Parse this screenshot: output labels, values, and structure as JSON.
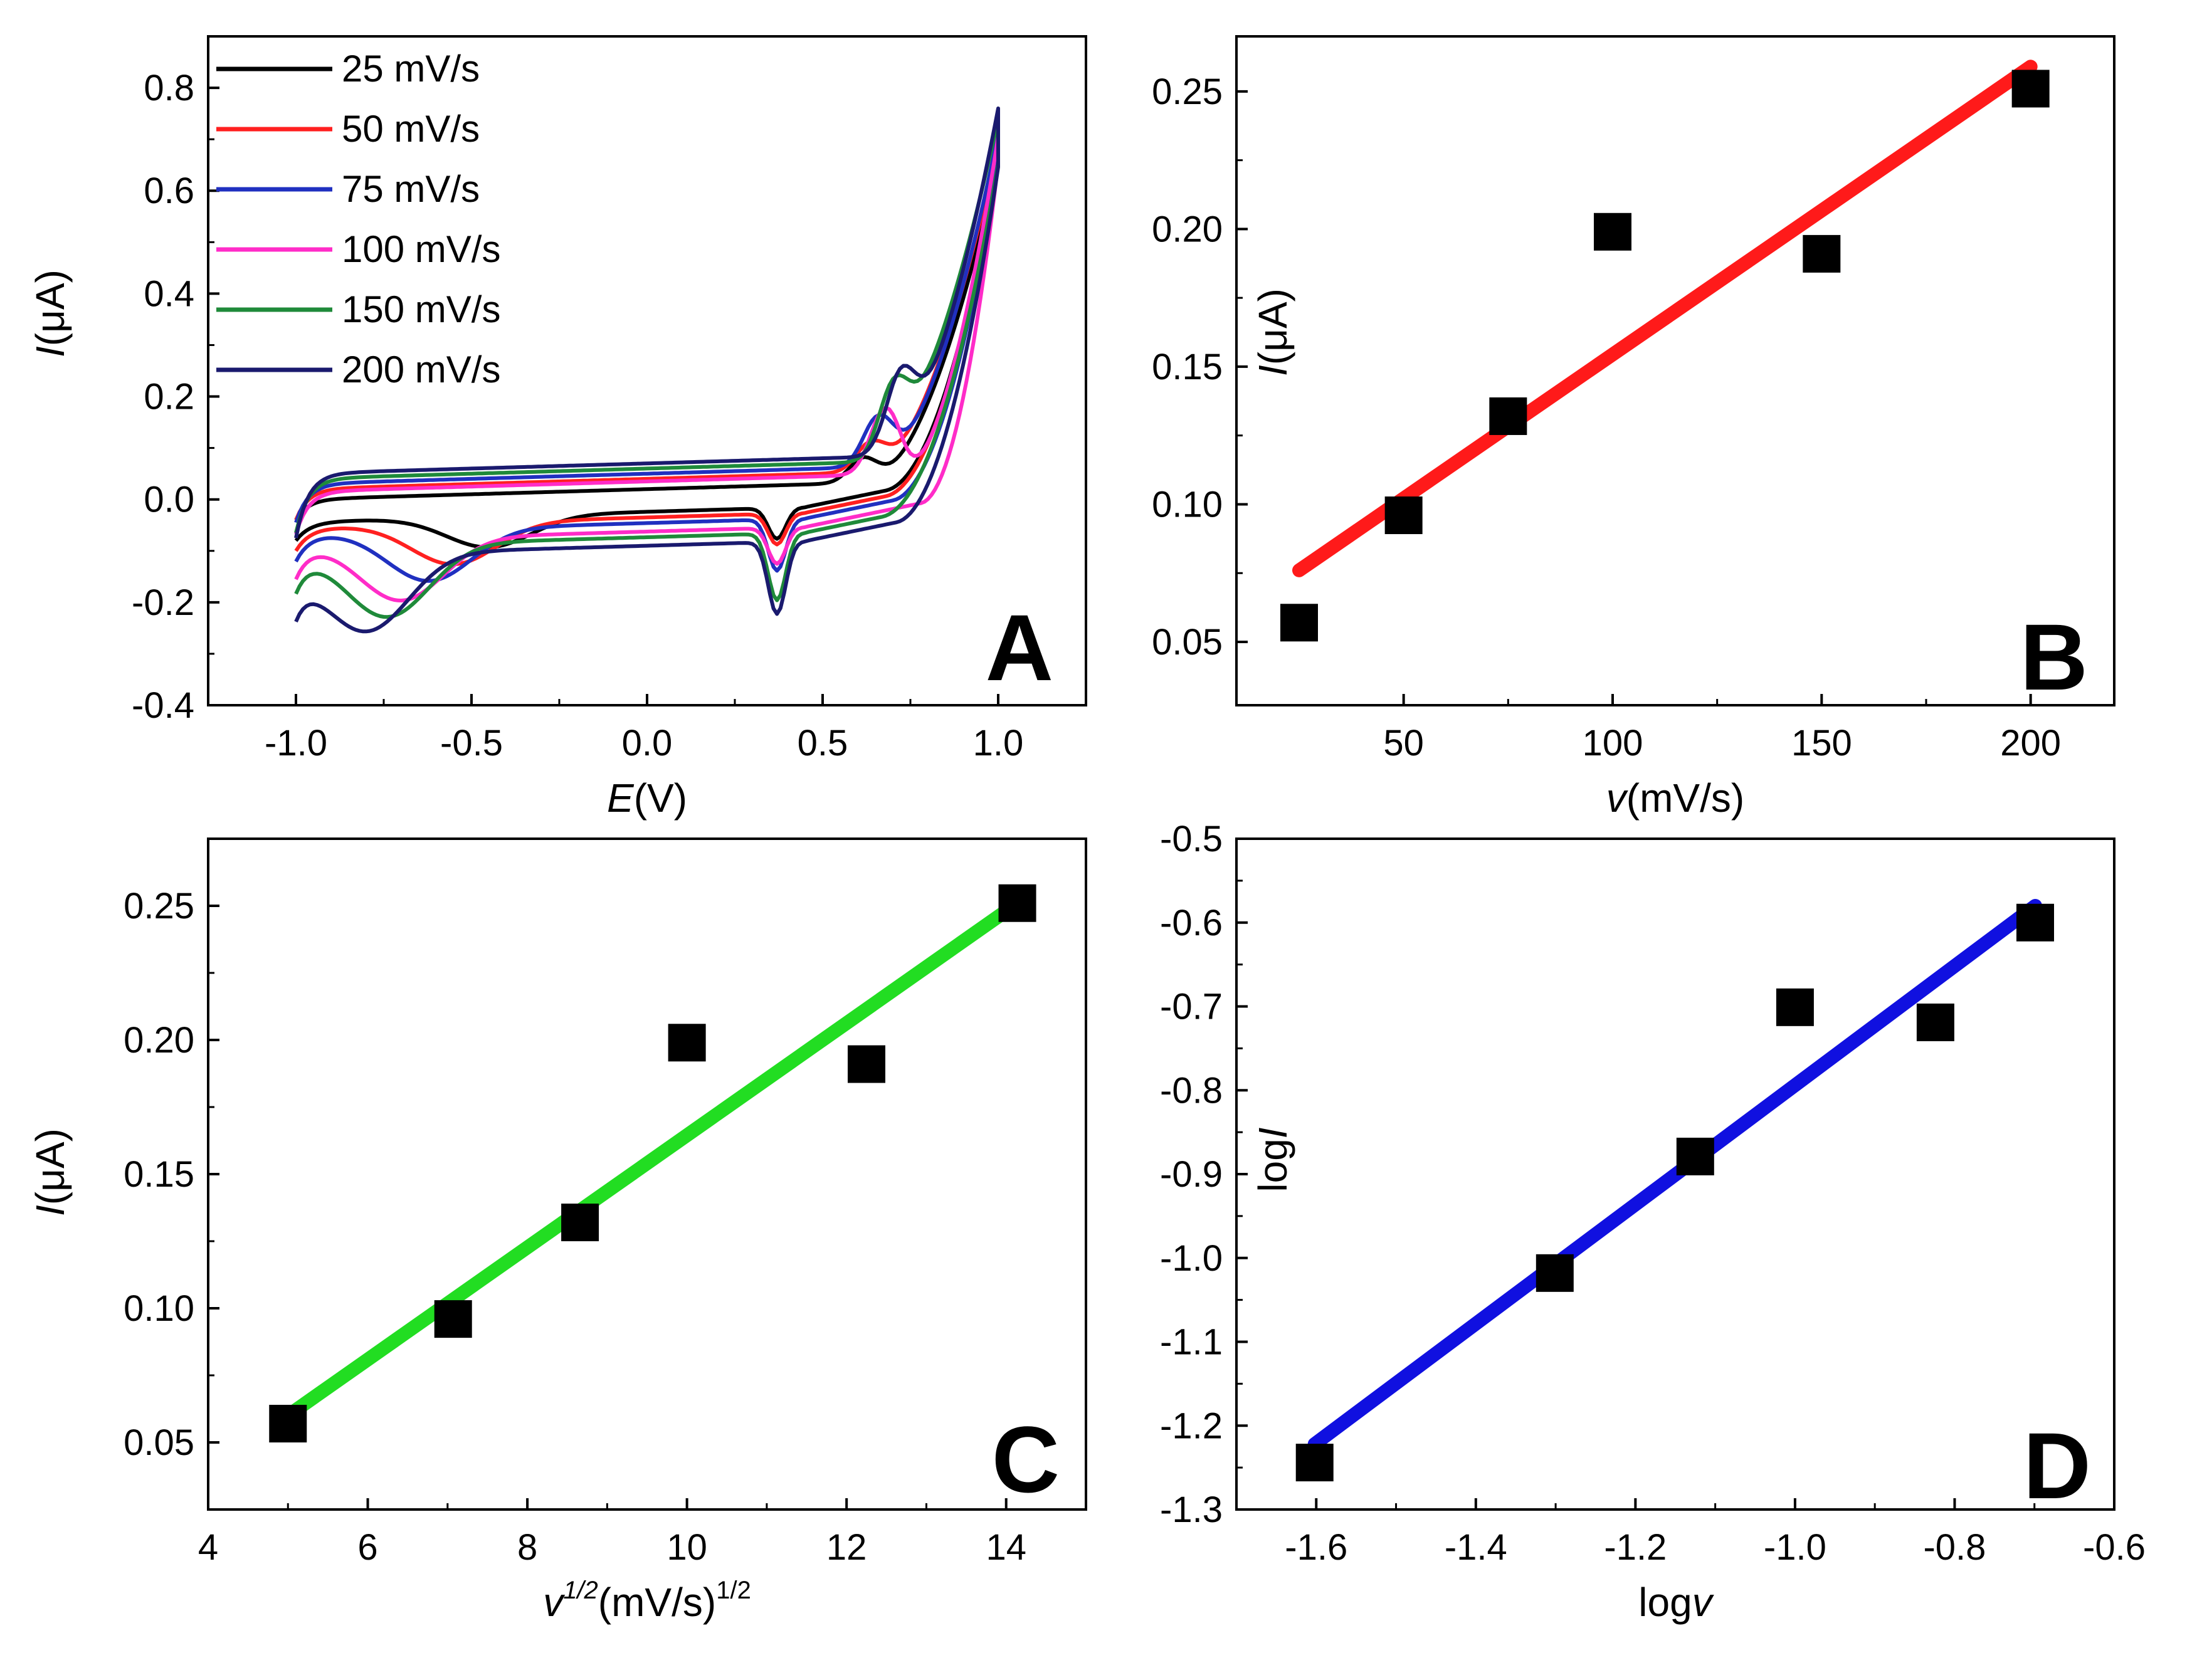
{
  "chart_data": [
    {
      "panel": "A",
      "type": "line",
      "xlabel_main": "E",
      "xlabel_unit": "(V)",
      "ylabel_main": "I",
      "ylabel_unit": "(μA)",
      "xlim": [
        -1.25,
        1.25
      ],
      "ylim": [
        -0.4,
        0.9
      ],
      "xticks": [
        -1.0,
        -0.5,
        0.0,
        0.5,
        1.0
      ],
      "xtick_labels": [
        "-1.0",
        "-0.5",
        "0.0",
        "0.5",
        "1.0"
      ],
      "yticks": [
        -0.4,
        -0.2,
        0.0,
        0.2,
        0.4,
        0.6,
        0.8
      ],
      "ytick_labels": [
        "-0.4",
        "-0.2",
        "0.0",
        "0.2",
        "0.4",
        "0.6",
        "0.8"
      ],
      "legend_position": "top-left",
      "series": [
        {
          "name": "25 mV/s",
          "color": "#000000",
          "a": -0.08,
          "b": 0.0,
          "d": 0.0,
          "c": 0.08,
          "t": 0.63,
          "ox": -0.45,
          "oa": 0.06,
          "rx": 0.37,
          "ra": 0.06,
          "pk": 0.05
        },
        {
          "name": "50 mV/s",
          "color": "#ff2020",
          "a": -0.1,
          "b": 0.02,
          "d": 0.02,
          "c": 0.1,
          "t": 0.63,
          "ox": -0.55,
          "oa": 0.08,
          "rx": 0.37,
          "ra": 0.06,
          "pk": 0.06
        },
        {
          "name": "75 mV/s",
          "color": "#2030c0",
          "a": -0.12,
          "b": 0.03,
          "d": 0.03,
          "c": 0.12,
          "t": 0.65,
          "ox": -0.62,
          "oa": 0.1,
          "rx": 0.37,
          "ra": 0.1,
          "pk": 0.1
        },
        {
          "name": "100 mV/s",
          "color": "#ff2cc8",
          "a": -0.15,
          "b": 0.015,
          "d": 0.015,
          "c": 0.08,
          "t": 0.73,
          "ox": -0.7,
          "oa": 0.12,
          "rx": 0.37,
          "ra": 0.07,
          "pk": 0.13
        },
        {
          "name": "150 mV/s",
          "color": "#1f8a3a",
          "a": -0.17,
          "b": 0.04,
          "d": 0.04,
          "c": 0.16,
          "t": 0.62,
          "ox": -0.74,
          "oa": 0.14,
          "rx": 0.37,
          "ra": 0.13,
          "pk": 0.12
        },
        {
          "name": "200 mV/s",
          "color": "#1a1a6e",
          "a": -0.2,
          "b": 0.05,
          "d": 0.05,
          "c": 0.17,
          "t": 0.66,
          "ox": -0.8,
          "oa": 0.15,
          "rx": 0.37,
          "ra": 0.14,
          "pk": 0.14
        }
      ]
    },
    {
      "panel": "B",
      "type": "scatter",
      "xlabel_main": "v",
      "xlabel_unit": "(mV/s)",
      "ylabel_main": "I",
      "ylabel_unit": "(μA)",
      "xlim": [
        10,
        220
      ],
      "ylim": [
        0.027,
        0.27
      ],
      "xticks": [
        50,
        100,
        150,
        200
      ],
      "xtick_labels": [
        "50",
        "100",
        "150",
        "200"
      ],
      "yticks": [
        0.05,
        0.1,
        0.15,
        0.2,
        0.25
      ],
      "ytick_labels": [
        "0.05",
        "0.10",
        "0.15",
        "0.20",
        "0.25"
      ],
      "x": [
        25,
        50,
        75,
        100,
        150,
        200
      ],
      "y": [
        0.057,
        0.096,
        0.132,
        0.199,
        0.191,
        0.251
      ],
      "fit": {
        "color": "#ff1a1a",
        "x": [
          25,
          200
        ],
        "y": [
          0.076,
          0.259
        ]
      }
    },
    {
      "panel": "C",
      "type": "scatter",
      "xlabel_main": "v",
      "xlabel_sup": "1/2",
      "xlabel_unit": "(mV/s)",
      "xlabel_unit_sup": "1/2",
      "ylabel_main": "I",
      "ylabel_unit": "(μA)",
      "xlim": [
        4,
        15
      ],
      "ylim": [
        0.025,
        0.275
      ],
      "xticks": [
        4,
        6,
        8,
        10,
        12,
        14
      ],
      "xtick_labels": [
        "4",
        "6",
        "8",
        "10",
        "12",
        "14"
      ],
      "yticks": [
        0.05,
        0.1,
        0.15,
        0.2,
        0.25
      ],
      "ytick_labels": [
        "0.05",
        "0.10",
        "0.15",
        "0.20",
        "0.25"
      ],
      "x": [
        5.0,
        7.07,
        8.66,
        10.0,
        12.25,
        14.14
      ],
      "y": [
        0.057,
        0.096,
        0.132,
        0.199,
        0.191,
        0.251
      ],
      "fit": {
        "color": "#22dd22",
        "x": [
          5.0,
          14.14
        ],
        "y": [
          0.06,
          0.251
        ]
      }
    },
    {
      "panel": "D",
      "type": "scatter",
      "xlabel_main": "logv",
      "ylabel_main": "logI",
      "xlim": [
        -1.7,
        -0.6
      ],
      "ylim": [
        -1.3,
        -0.5
      ],
      "xticks": [
        -1.6,
        -1.4,
        -1.2,
        -1.0,
        -0.8,
        -0.6
      ],
      "xtick_labels": [
        "-1.6",
        "-1.4",
        "-1.2",
        "-1.0",
        "-0.8",
        "-0.6"
      ],
      "yticks": [
        -1.3,
        -1.2,
        -1.1,
        -1.0,
        -0.9,
        -0.8,
        -0.7,
        -0.6,
        -0.5
      ],
      "ytick_labels": [
        "-1.3",
        "-1.2",
        "-1.1",
        "-1.0",
        "-0.9",
        "-0.8",
        "-0.7",
        "-0.6",
        "-0.5"
      ],
      "x": [
        -1.602,
        -1.301,
        -1.125,
        -1.0,
        -0.824,
        -0.699
      ],
      "y": [
        -1.244,
        -1.018,
        -0.879,
        -0.701,
        -0.719,
        -0.6
      ],
      "fit": {
        "color": "#1010e0",
        "x": [
          -1.602,
          -0.699
        ],
        "y": [
          -1.222,
          -0.58
        ]
      }
    }
  ]
}
